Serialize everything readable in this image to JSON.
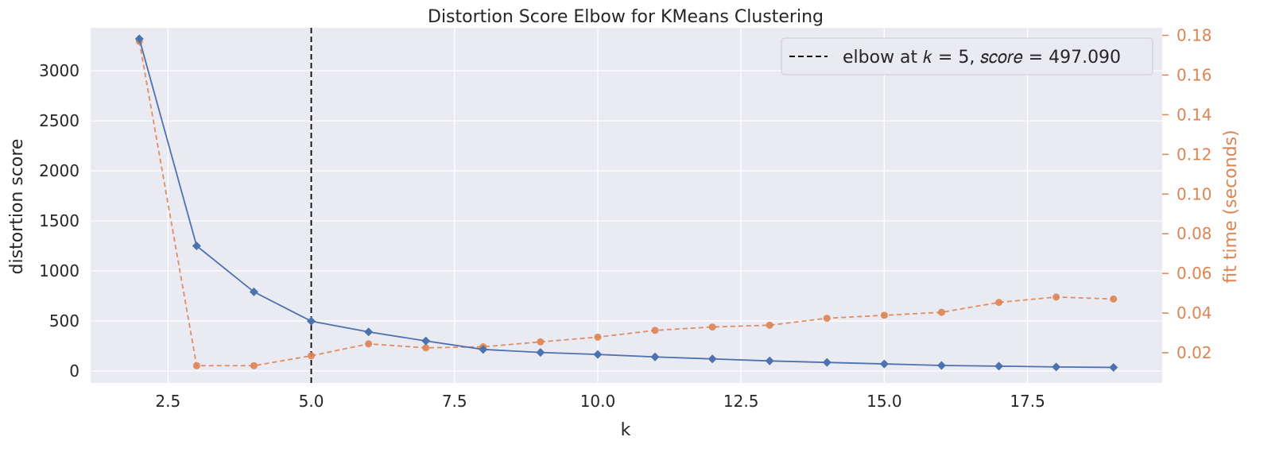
{
  "chart_data": {
    "type": "line",
    "title": "Distortion Score Elbow for KMeans Clustering",
    "xlabel": "k",
    "ylabel": "distortion score",
    "y2label": "fit time (seconds)",
    "xlim": [
      1.15,
      19.85
    ],
    "ylim": [
      -120,
      3430
    ],
    "y2lim": [
      0.0048,
      0.1838
    ],
    "xticks": [
      2.5,
      5.0,
      7.5,
      10.0,
      12.5,
      15.0,
      17.5
    ],
    "xtick_labels": [
      "2.5",
      "5.0",
      "7.5",
      "10.0",
      "12.5",
      "15.0",
      "17.5"
    ],
    "yticks": [
      0,
      500,
      1000,
      1500,
      2000,
      2500,
      3000
    ],
    "ytick_labels": [
      "0",
      "500",
      "1000",
      "1500",
      "2000",
      "2500",
      "3000"
    ],
    "y2ticks": [
      0.02,
      0.04,
      0.06,
      0.08,
      0.1,
      0.12,
      0.14,
      0.16,
      0.18
    ],
    "y2tick_labels": [
      "0.02",
      "0.04",
      "0.06",
      "0.08",
      "0.10",
      "0.12",
      "0.14",
      "0.16",
      "0.18"
    ],
    "grid": true,
    "legend_position": "top-right",
    "elbow": {
      "k": 5,
      "score": 497.09,
      "legend_label": "elbow at 𝑘 = 5, 𝑠𝑐𝑜𝑟𝑒 = 497.090"
    },
    "x": [
      2,
      3,
      4,
      5,
      6,
      7,
      8,
      9,
      10,
      11,
      12,
      13,
      14,
      15,
      16,
      17,
      18,
      19
    ],
    "series": [
      {
        "axis": "left",
        "color": "#4c72b0",
        "marker": "diamond",
        "line_style": "solid",
        "values": [
          3320,
          1250,
          790,
          497,
          390,
          300,
          215,
          185,
          165,
          140,
          120,
          100,
          85,
          70,
          55,
          48,
          40,
          35
        ]
      },
      {
        "axis": "right",
        "color": "#dd8452",
        "marker": "circle",
        "line_style": "dashed",
        "values": [
          0.177,
          0.0135,
          0.0135,
          0.0185,
          0.0245,
          0.0225,
          0.023,
          0.0255,
          0.0279,
          0.0313,
          0.033,
          0.0339,
          0.0374,
          0.0389,
          0.0404,
          0.0454,
          0.0481,
          0.0471
        ]
      }
    ],
    "colors": {
      "plot_bg": "#eaeaf2",
      "grid": "#ffffff",
      "text": "#262626",
      "right_axis": "#dd8452",
      "elbow_line": "#000000"
    }
  }
}
